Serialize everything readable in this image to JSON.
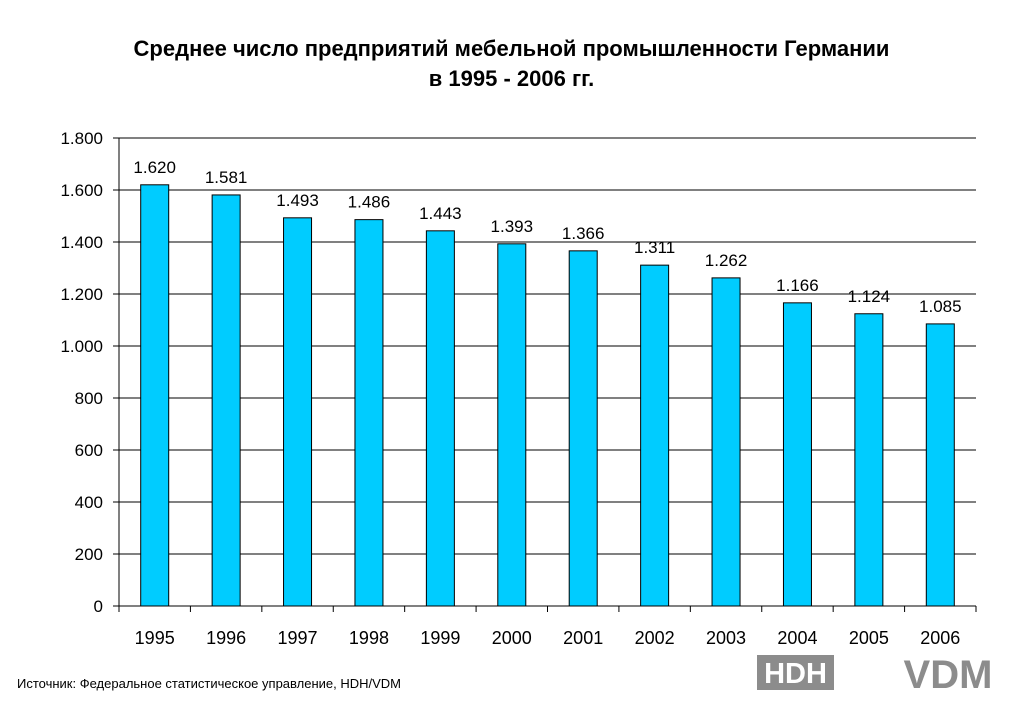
{
  "title": {
    "line1": "Среднее число предприятий мебельной промышленности Германии",
    "line2": "в 1995 - 2006 гг."
  },
  "source": "Источник: Федеральное статистическое управление, HDH/VDM",
  "logos": {
    "left": "HDH",
    "right": "VDM"
  },
  "colors": {
    "bar": "#00CCFF",
    "bar_edge": "#000000",
    "grid": "#000000",
    "logo_gray": "#8c8c8c"
  },
  "chart_data": {
    "type": "bar",
    "categories": [
      "1995",
      "1996",
      "1997",
      "1998",
      "1999",
      "2000",
      "2001",
      "2002",
      "2003",
      "2004",
      "2005",
      "2006"
    ],
    "values": [
      1620,
      1581,
      1493,
      1486,
      1443,
      1393,
      1366,
      1311,
      1262,
      1166,
      1124,
      1085
    ],
    "value_labels": [
      "1.620",
      "1.581",
      "1.493",
      "1.486",
      "1.443",
      "1.393",
      "1.366",
      "1.311",
      "1.262",
      "1.166",
      "1.124",
      "1.085"
    ],
    "yticks": [
      0,
      200,
      400,
      600,
      800,
      1000,
      1200,
      1400,
      1600,
      1800
    ],
    "ytick_labels": [
      "0",
      "200",
      "400",
      "600",
      "800",
      "1.000",
      "1.200",
      "1.400",
      "1.600",
      "1.800"
    ],
    "ylim": [
      0,
      1800
    ],
    "grid": true,
    "legend": false
  }
}
